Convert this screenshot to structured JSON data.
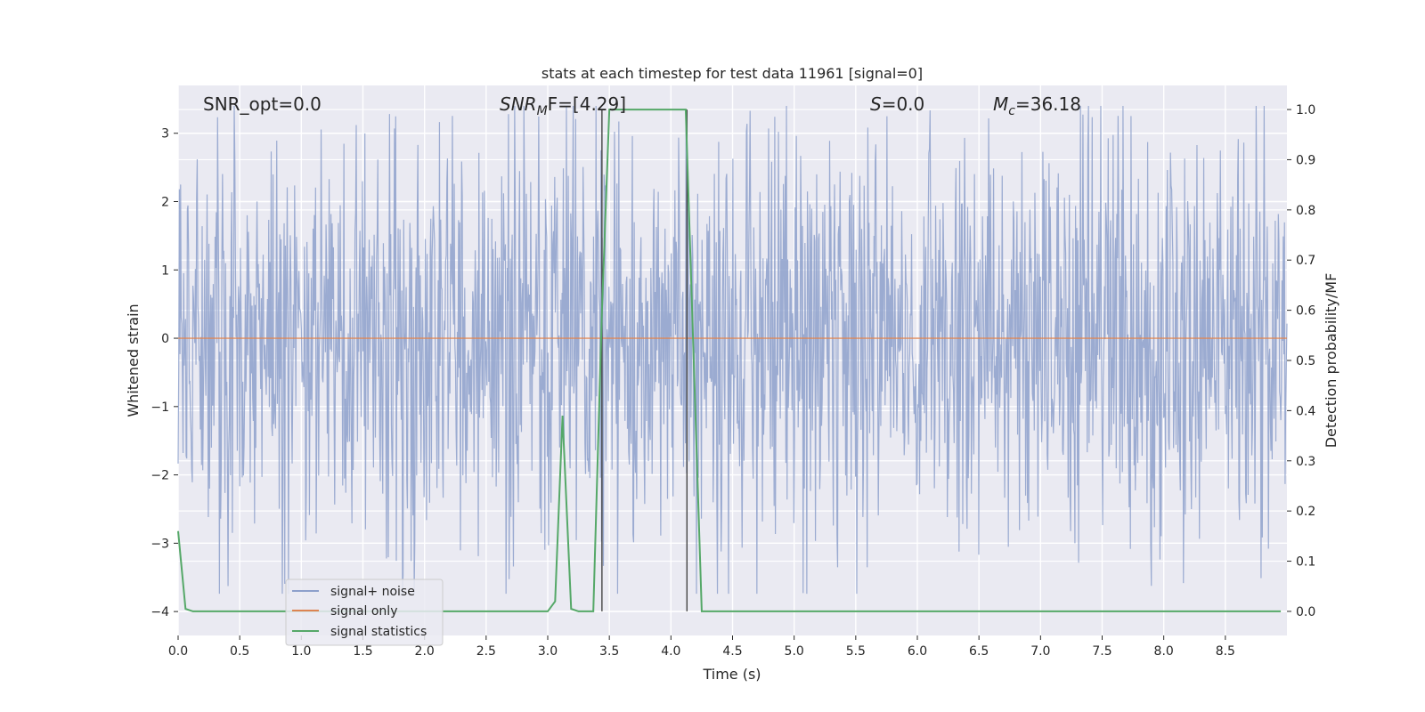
{
  "chart_data": {
    "type": "line",
    "title": "stats at each timestep for test data 11961 [signal=0]",
    "xlabel": "Time (s)",
    "ylabel": "Whitened strain",
    "ylabel_right": "Detection probability/MF",
    "xlim": [
      0.0,
      9.0
    ],
    "ylim": [
      -4.35,
      3.7
    ],
    "ylim_right": [
      -0.048,
      1.048
    ],
    "x_ticks": [
      "0.0",
      "0.5",
      "1.0",
      "1.5",
      "2.0",
      "2.5",
      "3.0",
      "3.5",
      "4.0",
      "4.5",
      "5.0",
      "5.5",
      "6.0",
      "6.5",
      "7.0",
      "7.5",
      "8.0",
      "8.5"
    ],
    "y_ticks": [
      "3",
      "2",
      "1",
      "0",
      "−1",
      "−2",
      "−3",
      "−4"
    ],
    "y_ticks_right": [
      "1.0",
      "0.9",
      "0.8",
      "0.7",
      "0.6",
      "0.5",
      "0.4",
      "0.3",
      "0.2",
      "0.1",
      "0.0"
    ],
    "grid": true,
    "legend_position": "lower-left",
    "annotations": {
      "snr_opt": "SNR_opt=0.0",
      "snr_mf_main": "SNR",
      "snr_mf_sub": "M",
      "snr_mf_tail": "F=[4.29]",
      "s_main": "S",
      "s_tail": "=0.0",
      "mc_main": "M",
      "mc_sub": "c",
      "mc_tail": "=36.18"
    },
    "vertical_lines_x": [
      3.44,
      4.13
    ],
    "series": [
      {
        "name": "signal+ noise",
        "axis": "left",
        "color": "#8da0cb",
        "description_values": "whitened noise, approx. gaussian, envelope about ±1.8 with spikes to ±3.4",
        "envelope": 1.8,
        "peak": 3.4
      },
      {
        "name": "signal only",
        "axis": "left",
        "color": "#dd8452",
        "x": [
          0.0,
          9.0
        ],
        "y": [
          0.0,
          0.0
        ]
      },
      {
        "name": "signal statistics",
        "axis": "right",
        "color": "#55a868",
        "x": [
          0.0,
          0.06,
          0.12,
          1.0,
          2.0,
          3.0,
          3.06,
          3.12,
          3.19,
          3.25,
          3.37,
          3.44,
          3.5,
          3.8,
          4.12,
          4.25,
          5.0,
          6.0,
          7.0,
          8.0,
          8.95
        ],
        "y": [
          0.16,
          0.005,
          0.0,
          0.0,
          0.0,
          0.0,
          0.02,
          0.39,
          0.005,
          0.0,
          0.0,
          0.6,
          1.0,
          1.0,
          1.0,
          0.0,
          0.0,
          0.0,
          0.0,
          0.0,
          0.0
        ]
      }
    ]
  }
}
